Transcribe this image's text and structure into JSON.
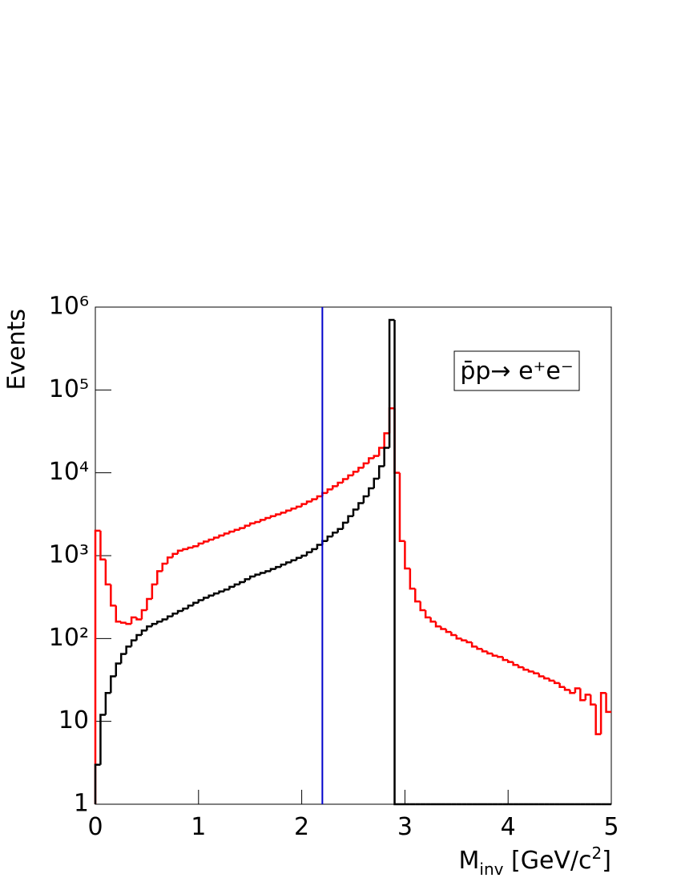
{
  "chart_data": {
    "type": "histogram",
    "ylabel": "Events",
    "xlabel_parts": [
      "M",
      "inv",
      " [GeV/c",
      "2",
      "]"
    ],
    "legend_text": "p̄p→ e⁺e⁻",
    "log_y": true,
    "xlim": [
      0,
      5
    ],
    "ylim": [
      1,
      1000000
    ],
    "xticks": [
      0,
      1,
      2,
      3,
      4,
      5
    ],
    "yticks": [
      1,
      10,
      {
        "value": 100,
        "label": "10²"
      },
      {
        "value": 1000,
        "label": "10³"
      },
      {
        "value": 10000,
        "label": "10⁴"
      },
      {
        "value": 100000,
        "label": "10⁵"
      },
      {
        "value": 1000000,
        "label": "10⁶"
      }
    ],
    "vline": {
      "x": 2.2,
      "color": "#0000cc"
    },
    "bins": [
      0,
      0.05,
      0.1,
      0.15,
      0.2,
      0.25,
      0.3,
      0.35,
      0.4,
      0.45,
      0.5,
      0.55,
      0.6,
      0.65,
      0.7,
      0.75,
      0.8,
      0.85,
      0.9,
      0.95,
      1,
      1.05,
      1.1,
      1.15,
      1.2,
      1.25,
      1.3,
      1.35,
      1.4,
      1.45,
      1.5,
      1.55,
      1.6,
      1.65,
      1.7,
      1.75,
      1.8,
      1.85,
      1.9,
      1.95,
      2,
      2.05,
      2.1,
      2.15,
      2.2,
      2.25,
      2.3,
      2.35,
      2.4,
      2.45,
      2.5,
      2.55,
      2.6,
      2.65,
      2.7,
      2.75,
      2.8,
      2.85,
      2.9,
      2.95,
      3,
      3.05,
      3.1,
      3.15,
      3.2,
      3.25,
      3.3,
      3.35,
      3.4,
      3.45,
      3.5,
      3.55,
      3.6,
      3.65,
      3.7,
      3.75,
      3.8,
      3.85,
      3.9,
      3.95,
      4,
      4.05,
      4.1,
      4.15,
      4.2,
      4.25,
      4.3,
      4.35,
      4.4,
      4.45,
      4.5,
      4.55,
      4.6,
      4.65,
      4.7,
      4.75,
      4.8,
      4.85,
      4.9,
      4.95,
      5
    ],
    "series": [
      {
        "color": "#ff0000",
        "values": [
          2000,
          900,
          450,
          250,
          160,
          155,
          150,
          180,
          170,
          220,
          300,
          450,
          650,
          800,
          950,
          1050,
          1150,
          1200,
          1250,
          1300,
          1400,
          1480,
          1560,
          1650,
          1750,
          1850,
          1950,
          2050,
          2150,
          2300,
          2450,
          2550,
          2700,
          2850,
          3000,
          3150,
          3300,
          3500,
          3700,
          3900,
          4200,
          4500,
          4800,
          5200,
          5700,
          6300,
          6900,
          7600,
          8400,
          9300,
          10300,
          11500,
          13000,
          15000,
          16000,
          20000,
          30000,
          60000,
          10000,
          1500,
          700,
          400,
          280,
          220,
          180,
          160,
          140,
          130,
          120,
          110,
          100,
          95,
          90,
          80,
          75,
          70,
          66,
          62,
          60,
          55,
          52,
          48,
          45,
          42,
          40,
          38,
          35,
          33,
          31,
          29,
          26,
          24,
          22,
          25,
          18,
          21,
          16,
          7,
          22,
          13
        ]
      },
      {
        "color": "#000000",
        "values": [
          3,
          12,
          22,
          35,
          50,
          65,
          80,
          95,
          110,
          125,
          140,
          150,
          160,
          170,
          185,
          200,
          215,
          230,
          250,
          270,
          290,
          310,
          330,
          350,
          370,
          390,
          420,
          450,
          480,
          520,
          560,
          590,
          620,
          650,
          690,
          730,
          780,
          830,
          880,
          940,
          1000,
          1100,
          1200,
          1350,
          1500,
          1700,
          1900,
          2100,
          2500,
          3000,
          3600,
          4300,
          5200,
          6500,
          8500,
          12000,
          20000,
          700000,
          0,
          0,
          0,
          0,
          0,
          0,
          0,
          0,
          0,
          0,
          0,
          0,
          0,
          0,
          0,
          0,
          0,
          0,
          0,
          0,
          0,
          0,
          0,
          0,
          0,
          0,
          0,
          0,
          0,
          0,
          0,
          0,
          0,
          0,
          0,
          0,
          0,
          0,
          0,
          0,
          0,
          0
        ]
      }
    ]
  }
}
